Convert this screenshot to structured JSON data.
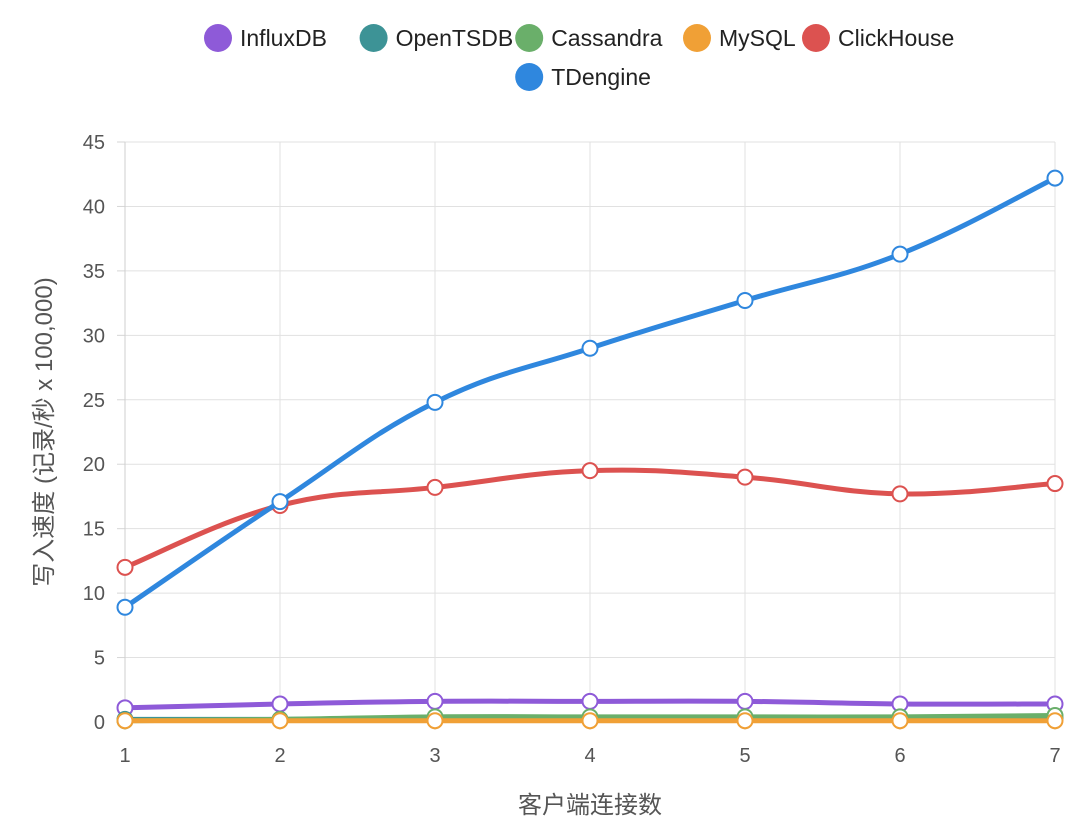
{
  "chart_data": {
    "type": "line",
    "xlabel": "客户端连接数",
    "ylabel": "写入速度 (记录/秒 x 100,000)",
    "x": [
      1,
      2,
      3,
      4,
      5,
      6,
      7
    ],
    "ylim": [
      0,
      45
    ],
    "yticks": [
      0,
      5,
      10,
      15,
      20,
      25,
      30,
      35,
      40,
      45
    ],
    "grid": true,
    "legend_position": "top",
    "series": [
      {
        "name": "InfluxDB",
        "color": "#8e5ad8",
        "values": [
          1.1,
          1.4,
          1.6,
          1.6,
          1.6,
          1.4,
          1.4
        ]
      },
      {
        "name": "OpenTSDB",
        "color": "#3d9396",
        "values": [
          0.2,
          0.2,
          0.3,
          0.3,
          0.3,
          0.3,
          0.3
        ]
      },
      {
        "name": "Cassandra",
        "color": "#6aaf6a",
        "values": [
          0.1,
          0.2,
          0.4,
          0.4,
          0.4,
          0.4,
          0.5
        ]
      },
      {
        "name": "MySQL",
        "color": "#f0a036",
        "values": [
          0.1,
          0.1,
          0.1,
          0.1,
          0.1,
          0.1,
          0.1
        ]
      },
      {
        "name": "ClickHouse",
        "color": "#dc5250",
        "values": [
          12.0,
          16.8,
          18.2,
          19.5,
          19.0,
          17.7,
          18.5
        ]
      },
      {
        "name": "TDengine",
        "color": "#2f87de",
        "values": [
          8.9,
          17.1,
          24.8,
          29.0,
          32.7,
          36.3,
          42.2
        ]
      }
    ]
  }
}
